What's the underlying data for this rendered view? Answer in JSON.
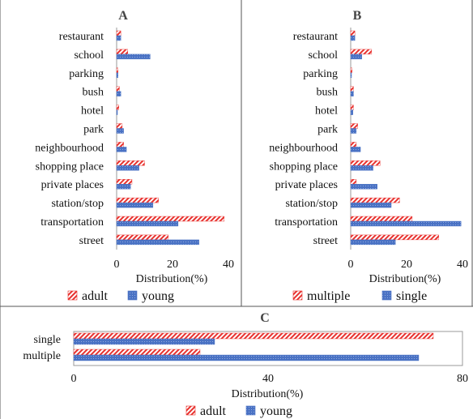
{
  "colors": {
    "red": "#e8322f",
    "blue": "#4a72c4",
    "frame": "#555555",
    "grid": "#c8c8c8"
  },
  "chart_data": [
    {
      "panel": "A",
      "title": "A",
      "type": "bar",
      "orientation": "horizontal",
      "categories": [
        "street",
        "transportation",
        "station/stop",
        "private places",
        "shopping place",
        "neighbourhood",
        "park",
        "hotel",
        "bush",
        "parking",
        "school",
        "restaurant"
      ],
      "series": [
        {
          "name": "adult",
          "pattern": "diagonal-red",
          "values": [
            18.5,
            38.5,
            15,
            5.5,
            10,
            2.5,
            2,
            0.8,
            1,
            0.5,
            4,
            1.5
          ]
        },
        {
          "name": "young",
          "pattern": "dotted-blue",
          "values": [
            29.5,
            22,
            13,
            5,
            8,
            3.5,
            2.5,
            0.3,
            1.5,
            0.5,
            12,
            1.5
          ]
        }
      ],
      "xlabel": "Distribution(%)",
      "xticks": [
        0,
        20,
        40
      ],
      "xlim": [
        0,
        40
      ],
      "legend": "bottom"
    },
    {
      "panel": "B",
      "title": "B",
      "type": "bar",
      "orientation": "horizontal",
      "categories": [
        "street",
        "transportation",
        "station/stop",
        "private places",
        "shopping place",
        "neighbourhood",
        "park",
        "hotel",
        "bush",
        "parking",
        "school",
        "restaurant"
      ],
      "series": [
        {
          "name": "multiple",
          "pattern": "diagonal-red",
          "values": [
            31.5,
            22,
            17.5,
            2,
            10.5,
            2,
            2.5,
            1,
            1,
            0.5,
            7.5,
            1.5
          ]
        },
        {
          "name": "single",
          "pattern": "dotted-blue",
          "values": [
            16,
            39.5,
            14.5,
            9.5,
            8,
            3.5,
            2,
            0.8,
            1,
            0.3,
            4,
            1.5
          ]
        }
      ],
      "xlabel": "Distribution(%)",
      "xticks": [
        0,
        20,
        40
      ],
      "xlim": [
        0,
        40
      ],
      "legend": "bottom"
    },
    {
      "panel": "C",
      "title": "C",
      "type": "bar",
      "orientation": "horizontal",
      "categories": [
        "single",
        "multiple"
      ],
      "series": [
        {
          "name": "adult",
          "pattern": "diagonal-red",
          "values": [
            74,
            26
          ]
        },
        {
          "name": "young",
          "pattern": "dotted-blue",
          "values": [
            29,
            71
          ]
        }
      ],
      "xlabel": "Distribution(%)",
      "xticks": [
        0,
        40,
        80
      ],
      "xlim": [
        0,
        80
      ],
      "legend": "bottom"
    }
  ]
}
